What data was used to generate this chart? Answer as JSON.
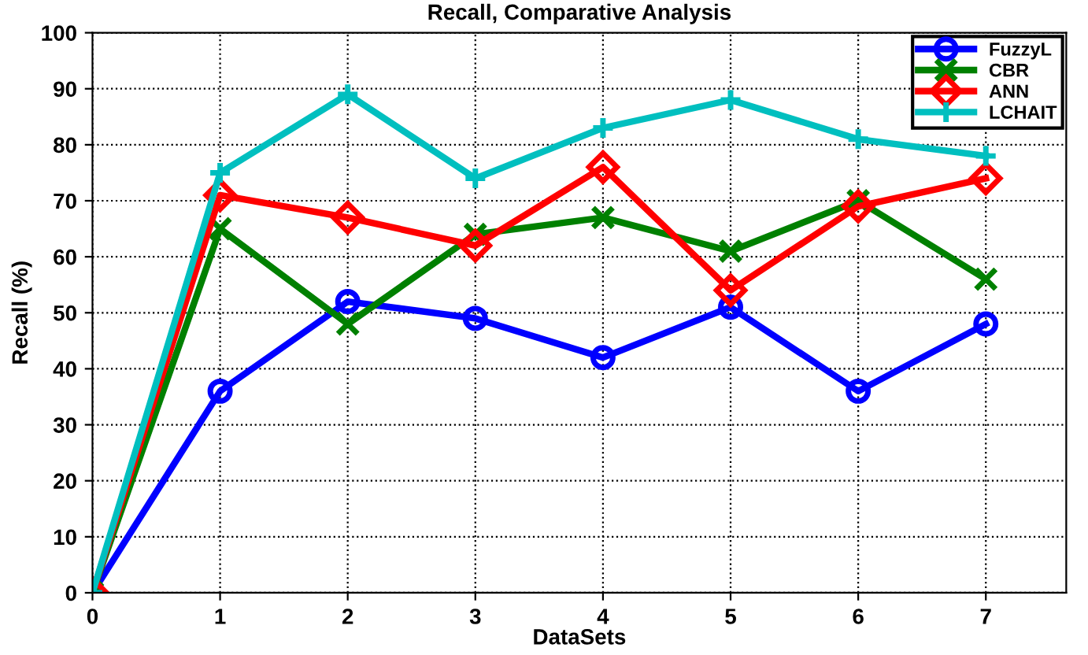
{
  "chart_data": {
    "type": "line",
    "title": "Recall, Comparative Analysis",
    "xlabel": "DataSets",
    "ylabel": "Recall (%)",
    "x": [
      0,
      1,
      2,
      3,
      4,
      5,
      6,
      7
    ],
    "series": [
      {
        "name": "FuzzyL",
        "color": "#0000ff",
        "marker": "circle",
        "values": [
          0,
          36,
          52,
          49,
          42,
          51,
          36,
          48
        ]
      },
      {
        "name": "CBR",
        "color": "#008000",
        "marker": "cross",
        "values": [
          0,
          65,
          48,
          64,
          67,
          61,
          70,
          56
        ]
      },
      {
        "name": "ANN",
        "color": "#ff0000",
        "marker": "diamond",
        "values": [
          0,
          71,
          67,
          62,
          76,
          54,
          69,
          74
        ]
      },
      {
        "name": "LCHAIT",
        "color": "#00bfbf",
        "marker": "plus",
        "values": [
          0,
          75,
          89,
          74,
          83,
          88,
          81,
          78
        ]
      }
    ],
    "xlim": [
      0,
      7.63
    ],
    "xticks": [
      0,
      1,
      2,
      3,
      4,
      5,
      6,
      7
    ],
    "ylim": [
      0,
      100
    ],
    "yticks": [
      0,
      10,
      20,
      30,
      40,
      50,
      60,
      70,
      80,
      90,
      100
    ],
    "grid": true,
    "legend": "top right",
    "line_style": "solid"
  }
}
